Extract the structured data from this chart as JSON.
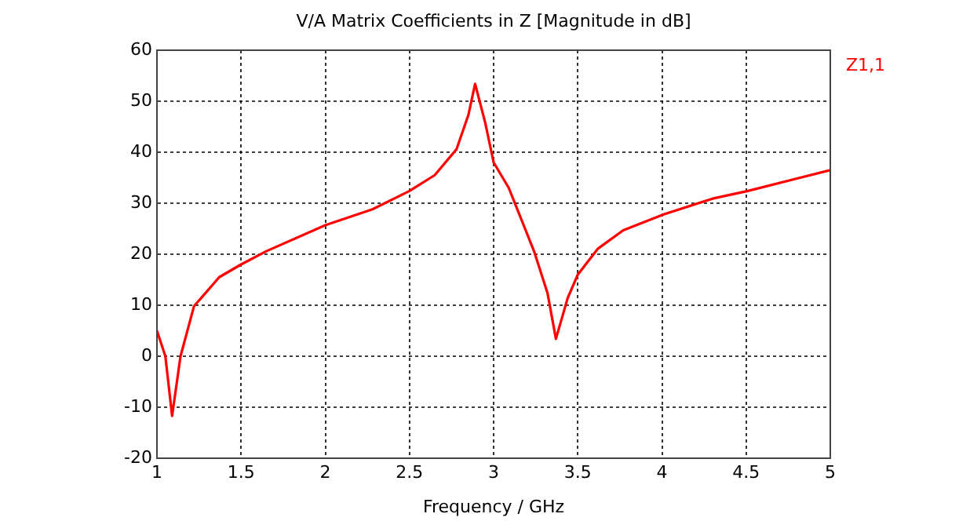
{
  "chart_data": {
    "type": "line",
    "title": "V/A Matrix Coefficients in Z [Magnitude in dB]",
    "xlabel": "Frequency / GHz",
    "x": [
      1,
      1.05,
      1.09,
      1.14,
      1.22,
      1.37,
      1.5,
      1.65,
      2.0,
      2.28,
      2.5,
      2.65,
      2.78,
      2.85,
      2.89,
      2.95,
      3.0,
      3.09,
      3.24,
      3.32,
      3.37,
      3.44,
      3.5,
      3.62,
      3.77,
      4.01,
      4.3,
      4.51,
      5
    ],
    "series": [
      {
        "name": "Z1,1",
        "color": "#ff0000",
        "values": [
          5,
          0,
          -11.7,
          0,
          9.8,
          15.5,
          18,
          20.6,
          25.7,
          28.8,
          32.4,
          35.5,
          40.6,
          47.3,
          53.4,
          45.8,
          38,
          33,
          20.6,
          12.4,
          3.4,
          11.4,
          16,
          21.1,
          24.7,
          27.8,
          30.9,
          32.4,
          36.5
        ]
      }
    ],
    "xlim": [
      1,
      5
    ],
    "xticks": [
      1,
      1.5,
      2,
      2.5,
      3,
      3.5,
      4,
      4.5,
      5
    ],
    "ylim": [
      -20,
      60
    ],
    "yticks": [
      -20,
      -10,
      0,
      10,
      20,
      30,
      40,
      50,
      60
    ],
    "grid": true,
    "legend": "top right",
    "marker": "none",
    "line_style": "solid"
  }
}
